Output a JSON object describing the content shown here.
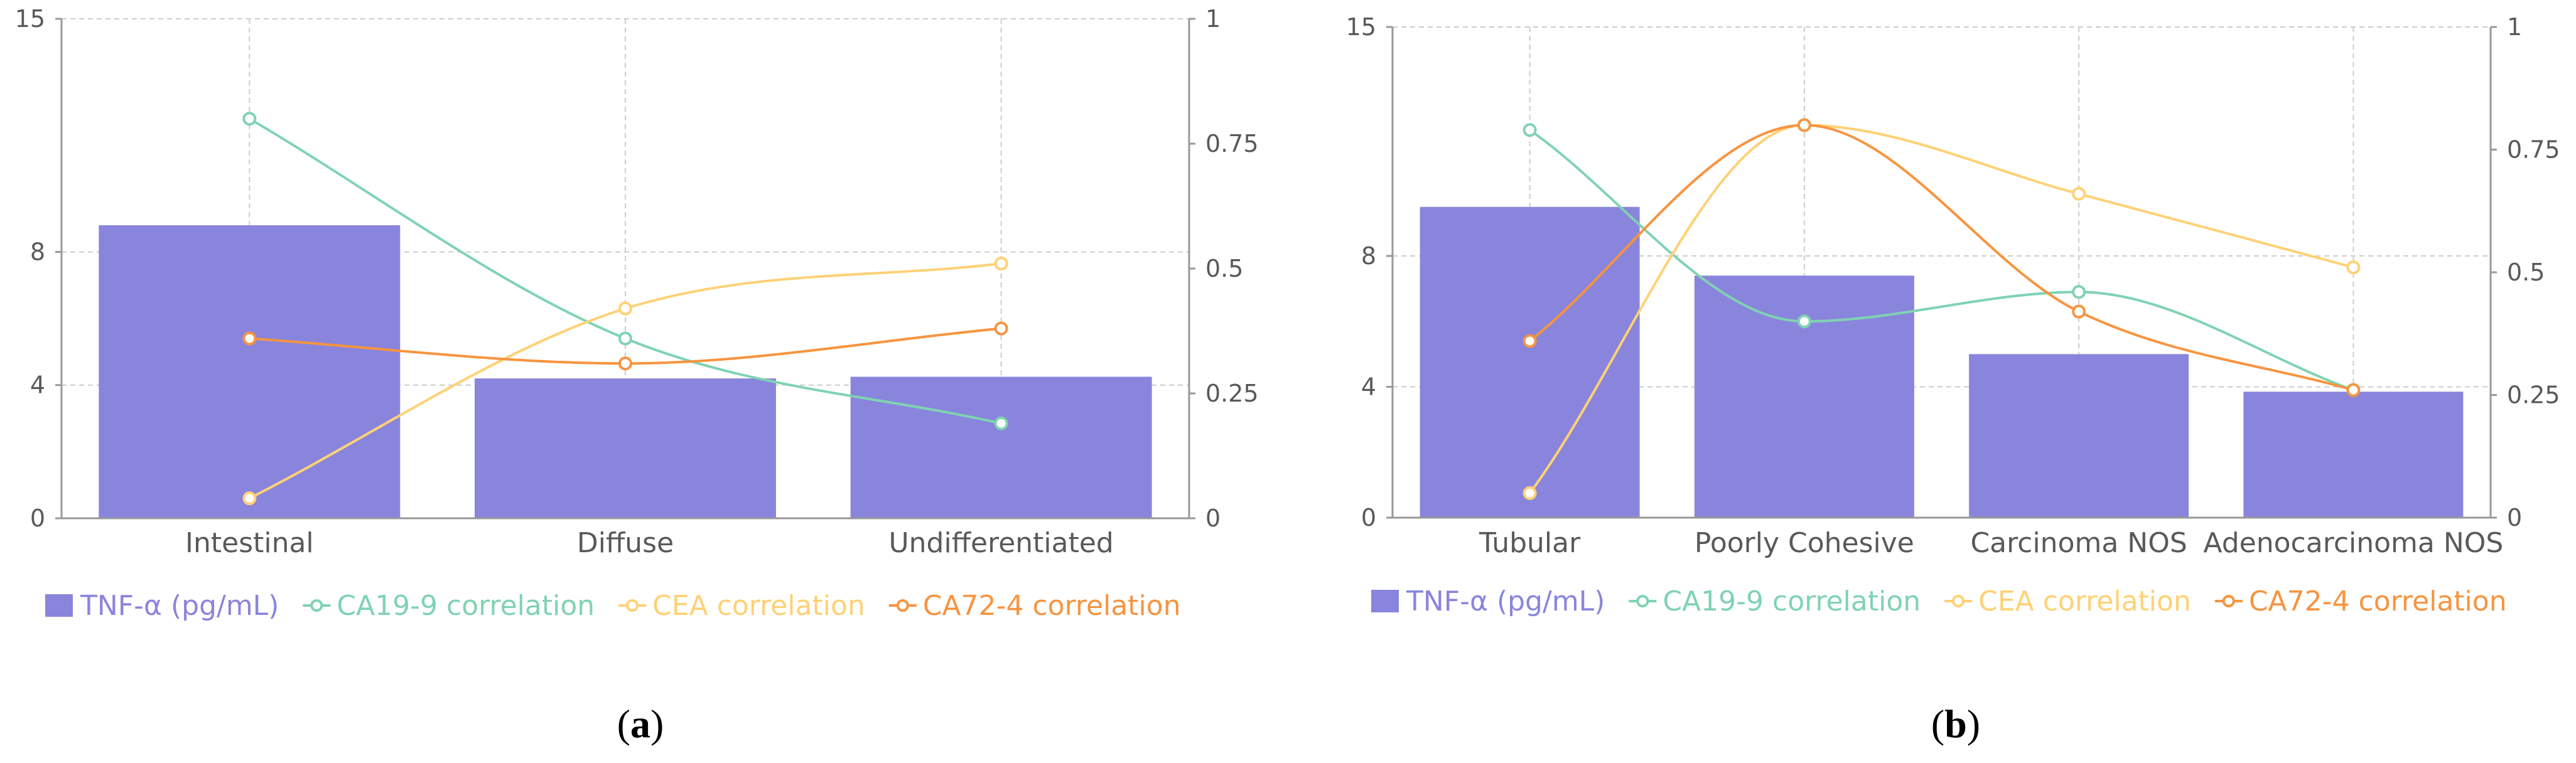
{
  "chart_data": [
    {
      "type": "bar+line",
      "panel_label": "a",
      "categories": [
        "Intestinal",
        "Diffuse",
        "Undifferentiated"
      ],
      "left_axis": {
        "ylim": [
          0,
          15
        ],
        "ticks": [
          "0",
          "4",
          "8",
          "15"
        ],
        "tick_values": [
          0,
          4,
          8,
          15
        ]
      },
      "right_axis": {
        "ylim": [
          0,
          1
        ],
        "ticks": [
          "0",
          "0.25",
          "0.5",
          "0.75",
          "1"
        ],
        "tick_values": [
          0,
          0.25,
          0.5,
          0.75,
          1
        ]
      },
      "bars": {
        "name": "TNF-α (pg/mL)",
        "axis": "left",
        "values": [
          8.8,
          4.2,
          4.25
        ]
      },
      "series": [
        {
          "name": "CA19-9 correlation",
          "axis": "right",
          "values": [
            0.8,
            0.36,
            0.19
          ]
        },
        {
          "name": "CEA correlation",
          "axis": "right",
          "values": [
            0.04,
            0.42,
            0.51
          ]
        },
        {
          "name": "CA72-4 correlation",
          "axis": "right",
          "values": [
            0.36,
            0.31,
            0.38
          ]
        }
      ],
      "grid": true
    },
    {
      "type": "bar+line",
      "panel_label": "b",
      "categories": [
        "Tubular",
        "Poorly Cohesive",
        "Carcinoma NOS",
        "Adenocarcinoma NOS"
      ],
      "left_axis": {
        "ylim": [
          0,
          15
        ],
        "ticks": [
          "0",
          "4",
          "8",
          "15"
        ],
        "tick_values": [
          0,
          4,
          8,
          15
        ]
      },
      "right_axis": {
        "ylim": [
          0,
          1
        ],
        "ticks": [
          "0",
          "0.25",
          "0.5",
          "0.75",
          "1"
        ],
        "tick_values": [
          0,
          0.25,
          0.5,
          0.75,
          1
        ]
      },
      "bars": {
        "name": "TNF-α (pg/mL)",
        "axis": "left",
        "values": [
          9.5,
          7.4,
          5.0,
          3.85
        ]
      },
      "series": [
        {
          "name": "CA19-9 correlation",
          "axis": "right",
          "values": [
            0.79,
            0.4,
            0.46,
            0.26
          ]
        },
        {
          "name": "CEA correlation",
          "axis": "right",
          "values": [
            0.05,
            0.8,
            0.66,
            0.51
          ]
        },
        {
          "name": "CA72-4 correlation",
          "axis": "right",
          "values": [
            0.36,
            0.8,
            0.42,
            0.26
          ]
        }
      ],
      "grid": true
    }
  ],
  "colors": {
    "bar": "#8985dc",
    "series": [
      "#7fd3b2",
      "#ffd175",
      "#f7943f"
    ],
    "grid": "#cccccc",
    "axis": "#999999",
    "tick_text": "#595959"
  },
  "captions": [
    "(a)",
    "(b)"
  ]
}
